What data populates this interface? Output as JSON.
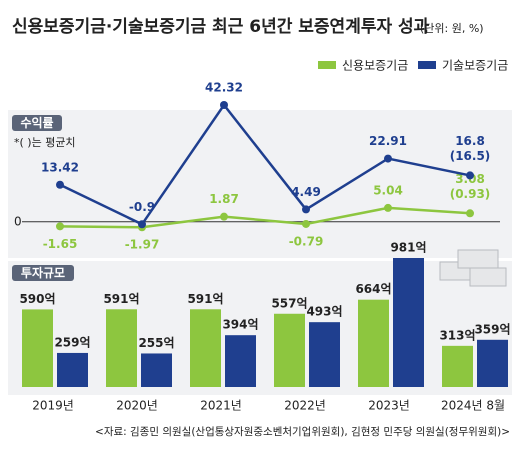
{
  "chart_data": [
    {
      "type": "line",
      "title": "신용보증기금·기술보증기금 최근 6년간 보증연계투자 성과",
      "unit": "(단위: 원, %)",
      "panel_label": "수익률",
      "note": "*( )는 평균치",
      "categories": [
        "2019년",
        "2020년",
        "2021년",
        "2022년",
        "2023년",
        "2024년 8월"
      ],
      "yticks": [
        0
      ],
      "series": [
        {
          "name": "신용보증기금",
          "color": "#8dc63f",
          "values": [
            -1.65,
            -1.97,
            1.87,
            -0.79,
            5.04,
            3.08
          ],
          "average_labels": [
            null,
            null,
            null,
            null,
            null,
            "(0.93)"
          ]
        },
        {
          "name": "기술보증기금",
          "color": "#1f3f8f",
          "values": [
            13.42,
            -0.9,
            42.32,
            4.49,
            22.91,
            16.8
          ],
          "average_labels": [
            null,
            null,
            null,
            null,
            null,
            "(16.5)"
          ]
        }
      ]
    },
    {
      "type": "bar",
      "panel_label": "투자규모",
      "categories": [
        "2019년",
        "2020년",
        "2021년",
        "2022년",
        "2023년",
        "2024년 8월"
      ],
      "series": [
        {
          "name": "신용보증기금",
          "color": "#8dc63f",
          "values": [
            590,
            591,
            591,
            557,
            664,
            313
          ],
          "value_labels": [
            "590억",
            "591억",
            "591억",
            "557억",
            "664억",
            "313억"
          ]
        },
        {
          "name": "기술보증기금",
          "color": "#1f3f8f",
          "values": [
            259,
            255,
            394,
            493,
            981,
            359
          ],
          "value_labels": [
            "259억",
            "255억",
            "394억",
            "493억",
            "981억",
            "359억"
          ]
        }
      ],
      "source": "<자료: 김종민 의원실(산업통상자원중소벤처기업위원회), 김현정 민주당 의원실(정무위원회)>"
    }
  ]
}
